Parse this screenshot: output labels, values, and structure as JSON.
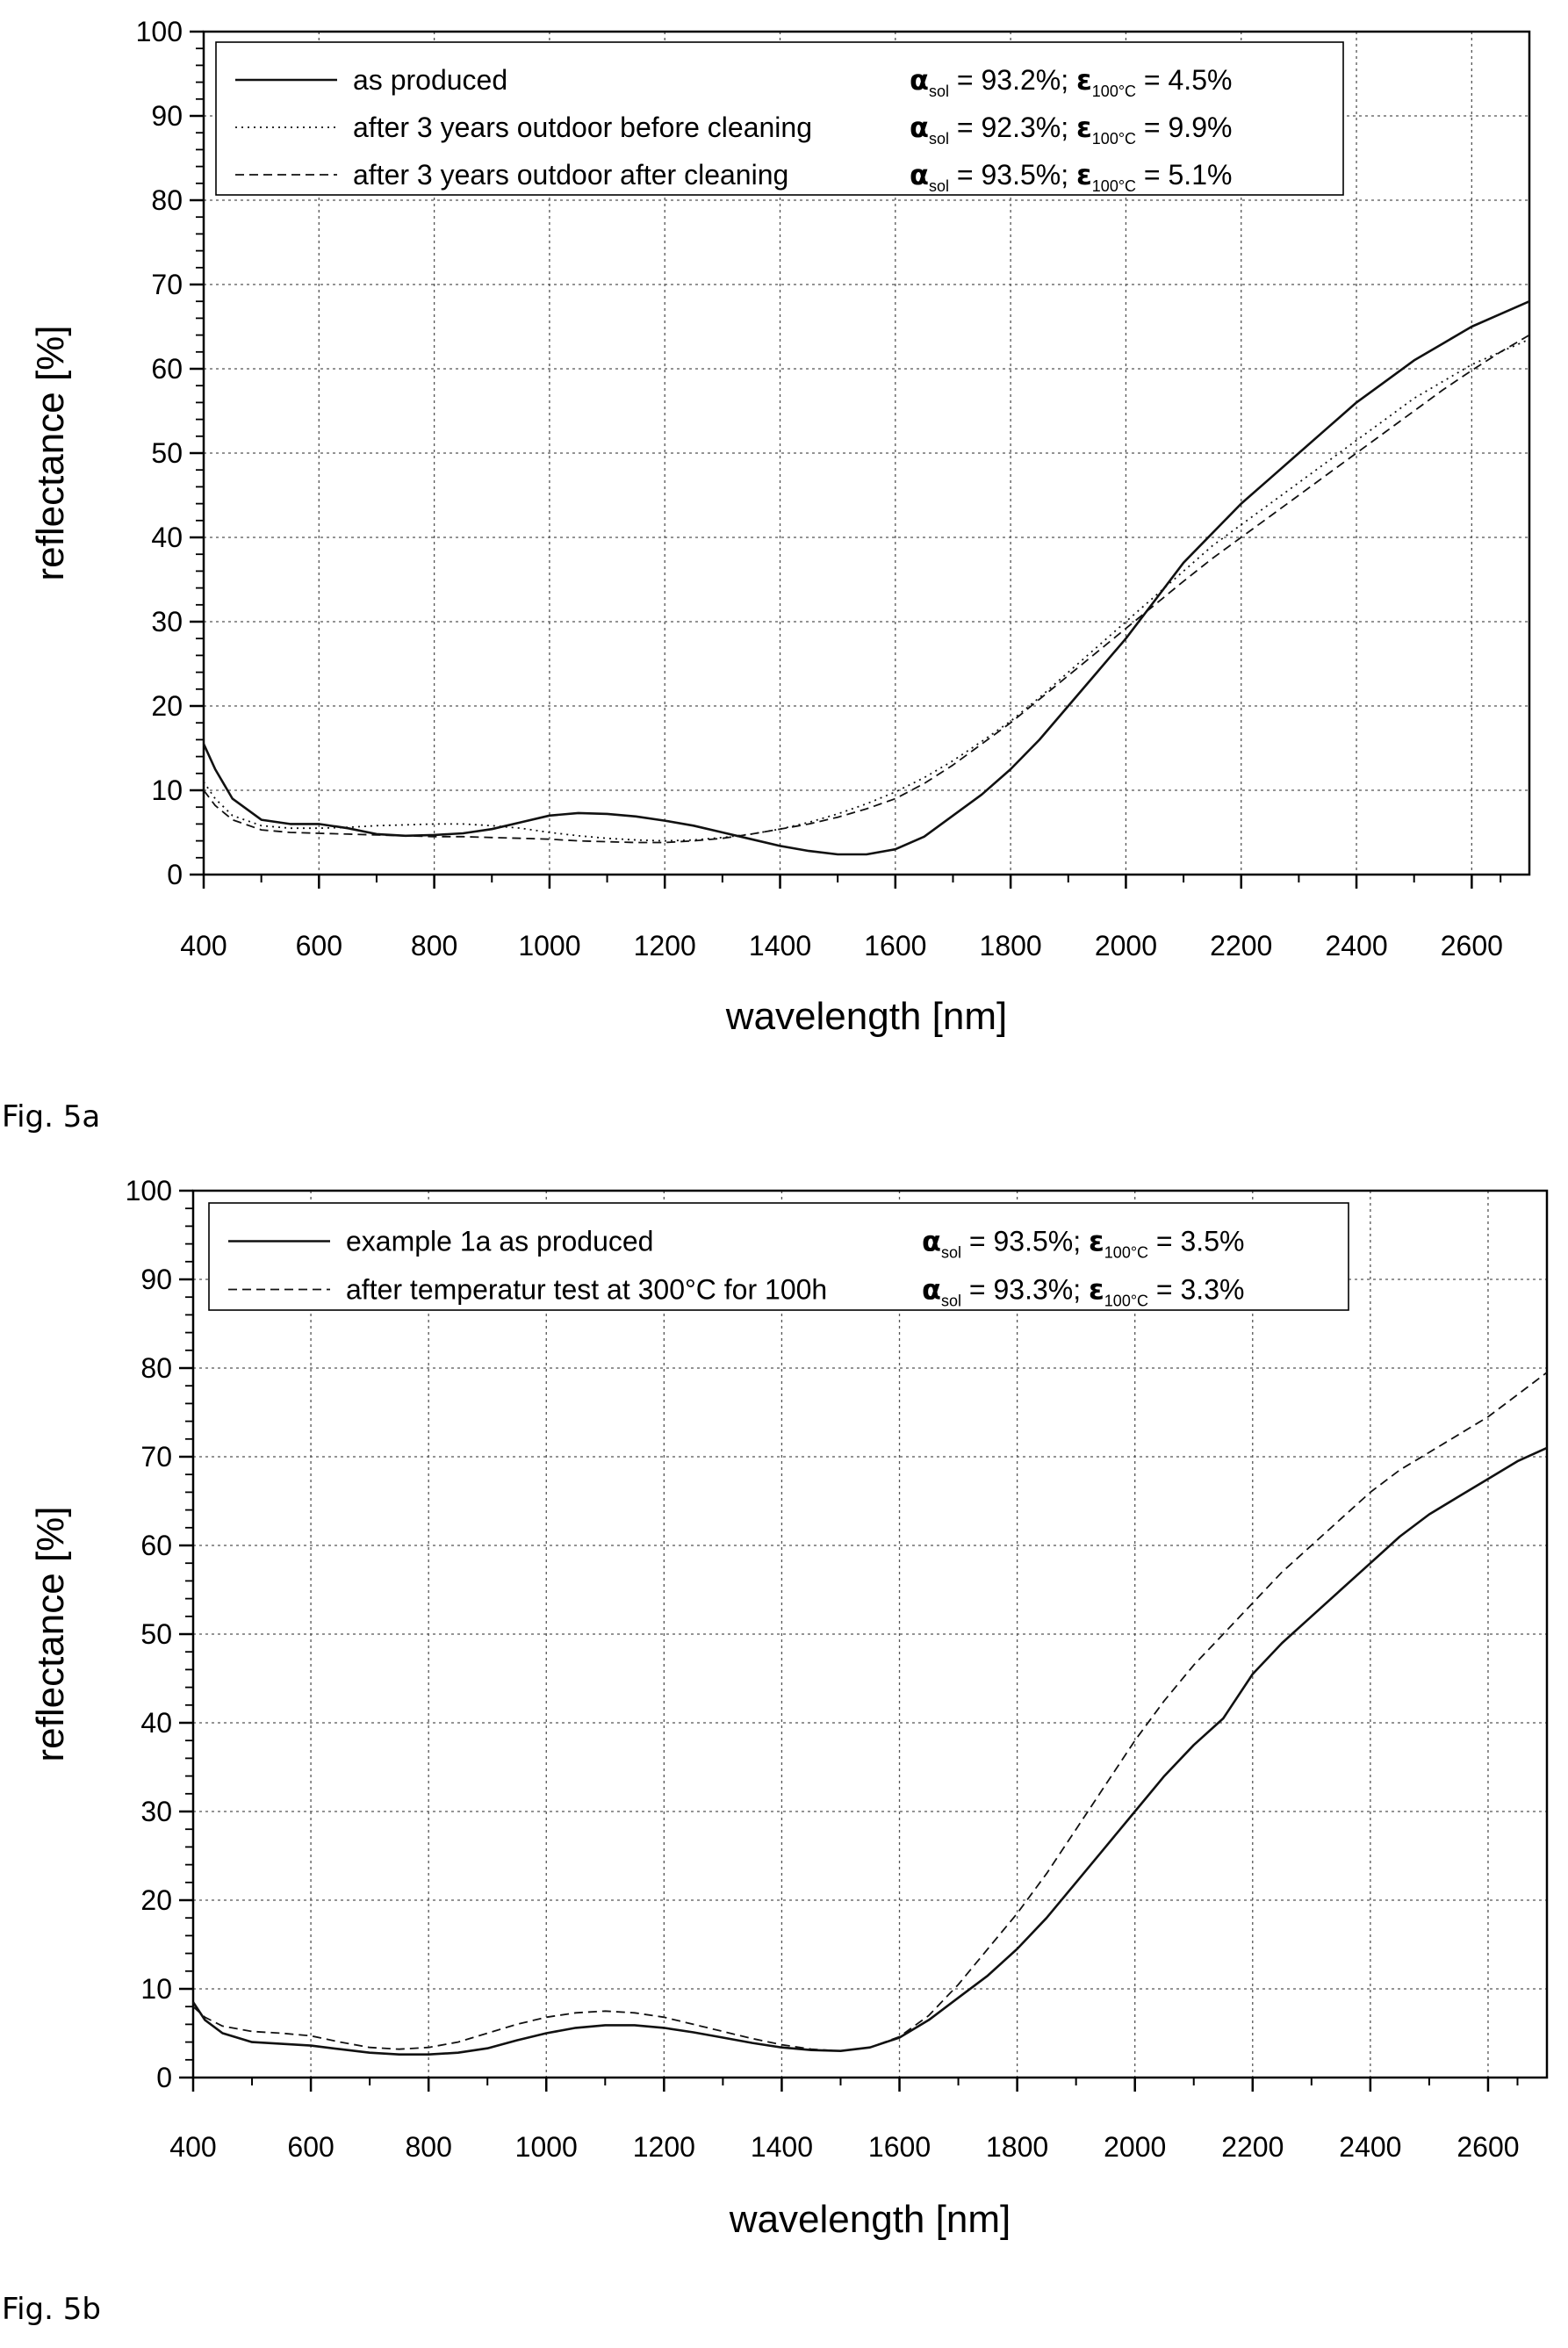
{
  "figures": [
    {
      "label": "Fig. 5a"
    },
    {
      "label": "Fig. 5b"
    }
  ],
  "chart_data": [
    {
      "type": "line",
      "title": "",
      "xlabel": "wavelength [nm]",
      "ylabel": "reflectance [%]",
      "xlim": [
        400,
        2700
      ],
      "ylim": [
        0,
        100
      ],
      "xticks": [
        400,
        600,
        800,
        1000,
        1200,
        1400,
        1600,
        1800,
        2000,
        2200,
        2400,
        2600
      ],
      "yticks": [
        0,
        10,
        20,
        30,
        40,
        50,
        60,
        70,
        80,
        90,
        100
      ],
      "grid": true,
      "legend_position": "top-left",
      "series": [
        {
          "name": "as produced",
          "alpha_sym": "α",
          "alpha_sub": "sol",
          "alpha_val": " = 93.2%; ",
          "eps_sym": "ε",
          "eps_sub": "100°C",
          "eps_val": " = 4.5%",
          "style": "solid",
          "x": [
            400,
            420,
            450,
            500,
            550,
            600,
            650,
            700,
            750,
            800,
            850,
            900,
            950,
            1000,
            1050,
            1100,
            1150,
            1200,
            1250,
            1300,
            1350,
            1400,
            1450,
            1500,
            1550,
            1600,
            1650,
            1700,
            1750,
            1800,
            1850,
            1900,
            1950,
            2000,
            2050,
            2100,
            2150,
            2200,
            2250,
            2300,
            2350,
            2400,
            2450,
            2500,
            2550,
            2600,
            2650,
            2700
          ],
          "y": [
            15.5,
            12.5,
            9.0,
            6.5,
            6.0,
            6.0,
            5.5,
            4.8,
            4.6,
            4.7,
            4.9,
            5.4,
            6.2,
            7.0,
            7.3,
            7.2,
            6.9,
            6.4,
            5.8,
            5.0,
            4.2,
            3.4,
            2.8,
            2.4,
            2.4,
            3.0,
            4.5,
            7.0,
            9.5,
            12.5,
            16.0,
            20.0,
            24.0,
            28.0,
            32.5,
            37.0,
            40.5,
            44.0,
            47.0,
            50.0,
            53.0,
            56.0,
            58.5,
            61.0,
            63.0,
            65.0,
            66.5,
            68.0
          ]
        },
        {
          "name": "after 3 years outdoor before cleaning",
          "alpha_sym": "α",
          "alpha_sub": "sol",
          "alpha_val": " = 92.3%; ",
          "eps_sym": "ε",
          "eps_sub": "100°C",
          "eps_val": " = 9.9%",
          "style": "dotted",
          "x": [
            400,
            420,
            450,
            500,
            550,
            600,
            650,
            700,
            750,
            800,
            850,
            900,
            950,
            1000,
            1050,
            1100,
            1150,
            1200,
            1250,
            1300,
            1350,
            1400,
            1450,
            1500,
            1550,
            1600,
            1650,
            1700,
            1750,
            1800,
            1850,
            1900,
            1950,
            2000,
            2050,
            2100,
            2150,
            2200,
            2250,
            2300,
            2350,
            2400,
            2450,
            2500,
            2550,
            2600,
            2650,
            2700
          ],
          "y": [
            11.0,
            9.0,
            7.0,
            5.8,
            5.5,
            5.5,
            5.6,
            5.8,
            5.9,
            6.0,
            6.0,
            5.8,
            5.5,
            5.0,
            4.6,
            4.3,
            4.1,
            4.0,
            4.1,
            4.4,
            4.8,
            5.4,
            6.2,
            7.2,
            8.4,
            9.8,
            11.5,
            13.5,
            15.8,
            18.2,
            21.0,
            24.0,
            27.0,
            30.0,
            33.0,
            36.0,
            39.0,
            41.5,
            44.0,
            46.5,
            49.0,
            51.5,
            54.0,
            56.5,
            58.5,
            60.5,
            62.0,
            63.5
          ]
        },
        {
          "name": "after 3 years outdoor after cleaning",
          "alpha_sym": "α",
          "alpha_sub": "sol",
          "alpha_val": " = 93.5%; ",
          "eps_sym": "ε",
          "eps_sub": "100°C",
          "eps_val": " = 5.1%",
          "style": "dashed",
          "x": [
            400,
            420,
            450,
            500,
            550,
            600,
            650,
            700,
            750,
            800,
            850,
            900,
            950,
            1000,
            1050,
            1100,
            1150,
            1200,
            1250,
            1300,
            1350,
            1400,
            1450,
            1500,
            1550,
            1600,
            1650,
            1700,
            1750,
            1800,
            1850,
            1900,
            1950,
            2000,
            2050,
            2100,
            2150,
            2200,
            2250,
            2300,
            2350,
            2400,
            2450,
            2500,
            2550,
            2600,
            2650,
            2700
          ],
          "y": [
            10.0,
            8.2,
            6.5,
            5.3,
            5.0,
            4.9,
            4.8,
            4.7,
            4.6,
            4.5,
            4.5,
            4.4,
            4.3,
            4.2,
            4.0,
            3.9,
            3.8,
            3.8,
            4.0,
            4.3,
            4.8,
            5.4,
            6.0,
            6.8,
            7.8,
            9.0,
            10.8,
            13.0,
            15.5,
            18.0,
            20.8,
            23.6,
            26.4,
            29.2,
            32.0,
            34.8,
            37.5,
            40.0,
            42.5,
            45.0,
            47.5,
            50.0,
            52.5,
            55.0,
            57.5,
            59.8,
            62.0,
            64.0
          ]
        }
      ]
    },
    {
      "type": "line",
      "title": "",
      "xlabel": "wavelength [nm]",
      "ylabel": "reflectance [%]",
      "xlim": [
        400,
        2700
      ],
      "ylim": [
        0,
        100
      ],
      "xticks": [
        400,
        600,
        800,
        1000,
        1200,
        1400,
        1600,
        1800,
        2000,
        2200,
        2400,
        2600
      ],
      "yticks": [
        0,
        10,
        20,
        30,
        40,
        50,
        60,
        70,
        80,
        90,
        100
      ],
      "grid": true,
      "legend_position": "top-left",
      "series": [
        {
          "name": "example 1a as produced",
          "alpha_sym": "α",
          "alpha_sub": "sol",
          "alpha_val": " = 93.5%; ",
          "eps_sym": "ε",
          "eps_sub": "100°C",
          "eps_val": " = 3.5%",
          "style": "solid",
          "x": [
            400,
            420,
            450,
            500,
            550,
            600,
            650,
            700,
            750,
            800,
            850,
            900,
            950,
            1000,
            1050,
            1100,
            1150,
            1200,
            1250,
            1300,
            1350,
            1400,
            1450,
            1500,
            1550,
            1600,
            1650,
            1700,
            1750,
            1800,
            1850,
            1900,
            1950,
            2000,
            2050,
            2100,
            2150,
            2200,
            2250,
            2300,
            2350,
            2400,
            2450,
            2500,
            2550,
            2600,
            2650,
            2700
          ],
          "y": [
            8.5,
            6.5,
            5.0,
            4.0,
            3.8,
            3.6,
            3.2,
            2.8,
            2.6,
            2.6,
            2.8,
            3.3,
            4.2,
            5.0,
            5.6,
            5.9,
            5.9,
            5.6,
            5.1,
            4.5,
            3.9,
            3.4,
            3.1,
            3.0,
            3.4,
            4.5,
            6.5,
            9.0,
            11.5,
            14.5,
            18.0,
            22.0,
            26.0,
            30.0,
            34.0,
            37.5,
            40.5,
            45.5,
            49.0,
            52.0,
            55.0,
            58.0,
            61.0,
            63.5,
            65.5,
            67.5,
            69.5,
            71.0
          ]
        },
        {
          "name": "after temperatur test at 300°C for 100h",
          "alpha_sym": "α",
          "alpha_sub": "sol",
          "alpha_val": " = 93.3%; ",
          "eps_sym": "ε",
          "eps_sub": "100°C",
          "eps_val": " = 3.3%",
          "style": "dashed",
          "x": [
            400,
            420,
            450,
            500,
            550,
            600,
            650,
            700,
            750,
            800,
            850,
            900,
            950,
            1000,
            1050,
            1100,
            1150,
            1200,
            1250,
            1300,
            1350,
            1400,
            1450,
            1500,
            1550,
            1600,
            1650,
            1700,
            1750,
            1800,
            1850,
            1900,
            1950,
            2000,
            2050,
            2100,
            2150,
            2200,
            2250,
            2300,
            2350,
            2400,
            2450,
            2500,
            2550,
            2600,
            2650,
            2700
          ],
          "y": [
            8.0,
            6.8,
            5.8,
            5.2,
            5.0,
            4.7,
            4.0,
            3.4,
            3.2,
            3.4,
            4.0,
            5.0,
            6.0,
            6.8,
            7.3,
            7.5,
            7.3,
            6.8,
            6.0,
            5.2,
            4.4,
            3.7,
            3.2,
            3.0,
            3.4,
            4.6,
            7.0,
            10.5,
            14.5,
            18.5,
            23.0,
            28.0,
            33.0,
            38.0,
            42.5,
            46.5,
            50.0,
            53.5,
            57.0,
            60.0,
            63.0,
            66.0,
            68.5,
            70.5,
            72.5,
            74.5,
            77.0,
            79.5
          ]
        }
      ]
    }
  ]
}
